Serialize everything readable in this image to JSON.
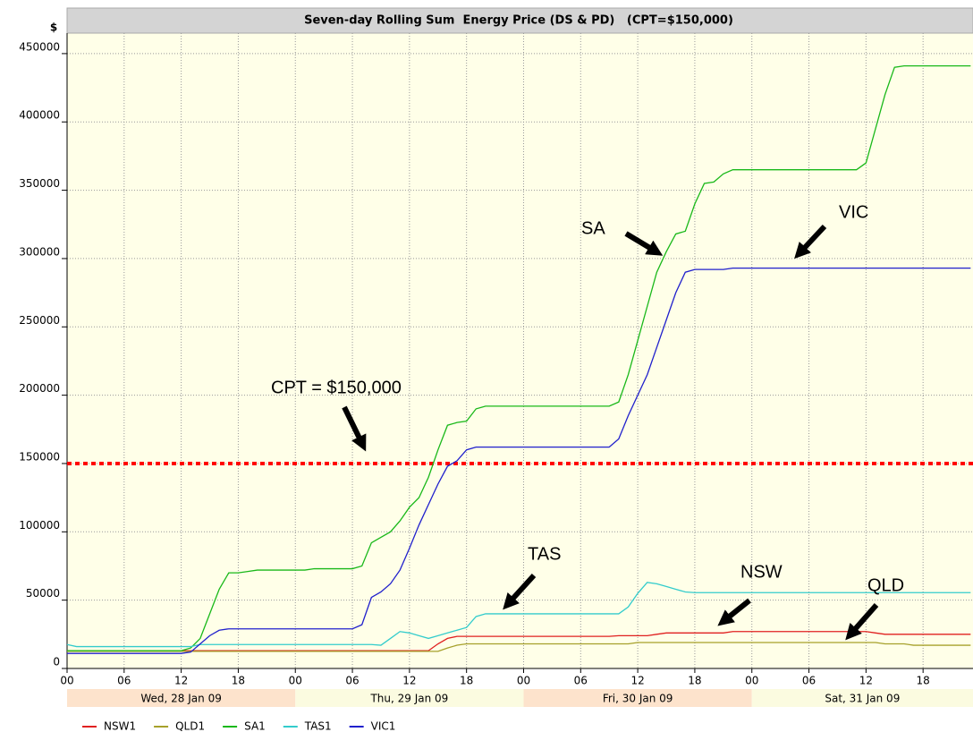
{
  "chart_data": {
    "type": "line",
    "title": "Seven-day Rolling Sum  Energy Price (DS & PD)   (CPT=$150,000)",
    "y_label": "$",
    "x": [
      0,
      1,
      2,
      3,
      4,
      5,
      6,
      7,
      8,
      9,
      10,
      11,
      12,
      13,
      14,
      15,
      16,
      17,
      18,
      19,
      20,
      21,
      22,
      23,
      24,
      25,
      26,
      27,
      28,
      29,
      30,
      31,
      32,
      33,
      34,
      35,
      36,
      37,
      38,
      39,
      40,
      41,
      42,
      43,
      44,
      45,
      46,
      47,
      48,
      49,
      50,
      51,
      52,
      53,
      54,
      55,
      56,
      57,
      58,
      59,
      60,
      61,
      62,
      63,
      64,
      65,
      66,
      67,
      68,
      69,
      70,
      71,
      72,
      73,
      74,
      75,
      76,
      77,
      78,
      79,
      80,
      81,
      82,
      83,
      84,
      85,
      86,
      87,
      88,
      89,
      90,
      91,
      92,
      93,
      94,
      95
    ],
    "xlim": [
      0,
      95.25
    ],
    "xticks": [
      {
        "value": 0,
        "label": "00"
      },
      {
        "value": 6,
        "label": "06"
      },
      {
        "value": 12,
        "label": "12"
      },
      {
        "value": 18,
        "label": "18"
      },
      {
        "value": 24,
        "label": "00"
      },
      {
        "value": 30,
        "label": "06"
      },
      {
        "value": 36,
        "label": "12"
      },
      {
        "value": 42,
        "label": "18"
      },
      {
        "value": 48,
        "label": "00"
      },
      {
        "value": 54,
        "label": "06"
      },
      {
        "value": 60,
        "label": "12"
      },
      {
        "value": 66,
        "label": "18"
      },
      {
        "value": 72,
        "label": "00"
      },
      {
        "value": 78,
        "label": "06"
      },
      {
        "value": 84,
        "label": "12"
      },
      {
        "value": 90,
        "label": "18"
      }
    ],
    "day_tick_color": "#ff0000",
    "days": [
      {
        "label": "Wed, 28 Jan 09",
        "start": 0,
        "color": "#fde3cc"
      },
      {
        "label": "Thu, 29 Jan 09",
        "start": 24,
        "color": "#fbfbe0"
      },
      {
        "label": "Fri, 30 Jan 09",
        "start": 48,
        "color": "#fde3cc"
      },
      {
        "label": "Sat, 31 Jan 09",
        "start": 72,
        "color": "#fbfbe0"
      }
    ],
    "ylim": [
      0,
      465000
    ],
    "yticks": [
      0,
      50000,
      100000,
      150000,
      200000,
      250000,
      300000,
      350000,
      400000,
      450000
    ],
    "grid": true,
    "reference_line": {
      "value": 150000,
      "color": "#ff0000"
    },
    "series": [
      {
        "name": "NSW1",
        "color": "#e02020",
        "values": [
          13000,
          13000,
          13000,
          13000,
          13000,
          13000,
          13000,
          13000,
          13000,
          13000,
          13000,
          13000,
          13000,
          13000,
          13000,
          13000,
          13000,
          13000,
          13000,
          13000,
          13000,
          13000,
          13000,
          13000,
          13000,
          13000,
          13000,
          13000,
          13000,
          13000,
          13000,
          13000,
          13000,
          13000,
          13000,
          13000,
          13000,
          13000,
          13000,
          18000,
          22000,
          23500,
          23500,
          23500,
          23500,
          23500,
          23500,
          23500,
          23500,
          23500,
          23500,
          23500,
          23500,
          23500,
          23500,
          23500,
          23500,
          23500,
          24000,
          24000,
          24000,
          24000,
          25000,
          26000,
          26000,
          26000,
          26000,
          26000,
          26000,
          26000,
          27000,
          27000,
          27000,
          27000,
          27000,
          27000,
          27000,
          27000,
          27000,
          27000,
          27000,
          27000,
          27000,
          27000,
          27000,
          26000,
          25000,
          25000,
          25000,
          25000,
          25000,
          25000,
          25000,
          25000,
          25000,
          25000
        ]
      },
      {
        "name": "QLD1",
        "color": "#a6a02a",
        "values": [
          12500,
          12500,
          12500,
          12500,
          12500,
          12500,
          12500,
          12500,
          12500,
          12500,
          12500,
          12500,
          12500,
          12500,
          12500,
          12500,
          12500,
          12500,
          12500,
          12500,
          12500,
          12500,
          12500,
          12500,
          12500,
          12500,
          12500,
          12500,
          12500,
          12500,
          12500,
          12500,
          12500,
          12500,
          12500,
          12500,
          12500,
          12500,
          12500,
          12500,
          15000,
          17000,
          18000,
          18000,
          18000,
          18000,
          18000,
          18000,
          18000,
          18000,
          18000,
          18000,
          18000,
          18000,
          18000,
          18000,
          18000,
          18000,
          18000,
          18000,
          19000,
          19000,
          19000,
          19000,
          19000,
          19000,
          19000,
          19000,
          19000,
          19000,
          19000,
          19000,
          19000,
          19000,
          19000,
          19000,
          19000,
          19000,
          19000,
          19000,
          19000,
          19000,
          19000,
          19000,
          19000,
          19000,
          18000,
          18000,
          18000,
          17000,
          17000,
          17000,
          17000,
          17000,
          17000,
          17000
        ]
      },
      {
        "name": "SA1",
        "color": "#19b819",
        "values": [
          13000,
          13000,
          13000,
          13000,
          13000,
          13000,
          13000,
          13000,
          13000,
          13000,
          13000,
          13000,
          13000,
          15000,
          22000,
          40000,
          58000,
          70000,
          70000,
          71000,
          72000,
          72000,
          72000,
          72000,
          72000,
          72000,
          73000,
          73000,
          73000,
          73000,
          73000,
          75000,
          92000,
          96000,
          100000,
          108000,
          118000,
          125000,
          140000,
          160000,
          178000,
          180000,
          181000,
          190000,
          192000,
          192000,
          192000,
          192000,
          192000,
          192000,
          192000,
          192000,
          192000,
          192000,
          192000,
          192000,
          192000,
          192000,
          195000,
          215000,
          240000,
          265000,
          290000,
          305000,
          318000,
          320000,
          340000,
          355000,
          356000,
          362000,
          365000,
          365000,
          365000,
          365000,
          365000,
          365000,
          365000,
          365000,
          365000,
          365000,
          365000,
          365000,
          365000,
          365000,
          370000,
          395000,
          420000,
          440000,
          441000,
          441000,
          441000,
          441000,
          441000,
          441000,
          441000,
          441000
        ]
      },
      {
        "name": "TAS1",
        "color": "#33cccc",
        "values": [
          17500,
          16000,
          16000,
          16000,
          16000,
          16000,
          16000,
          16000,
          16000,
          16000,
          16000,
          16000,
          16000,
          16000,
          17500,
          17500,
          17500,
          17500,
          17500,
          17500,
          17500,
          17500,
          17500,
          17500,
          17500,
          17500,
          17500,
          17500,
          17500,
          17500,
          17500,
          17500,
          17500,
          17000,
          22000,
          27000,
          26000,
          24000,
          22000,
          24000,
          26000,
          28000,
          30000,
          38000,
          40000,
          40000,
          40000,
          40000,
          40000,
          40000,
          40000,
          40000,
          40000,
          40000,
          40000,
          40000,
          40000,
          40000,
          40000,
          45000,
          55000,
          63000,
          62000,
          60000,
          58000,
          56000,
          55500,
          55500,
          55500,
          55500,
          55500,
          55500,
          55500,
          55500,
          55500,
          55500,
          55500,
          55500,
          55500,
          55500,
          55500,
          55500,
          55500,
          55500,
          55500,
          55500,
          55500,
          55500,
          55500,
          55500,
          55500,
          55500,
          55500,
          55500,
          55500,
          55500
        ]
      },
      {
        "name": "VIC1",
        "color": "#2020cc",
        "values": [
          11000,
          11000,
          11000,
          11000,
          11000,
          11000,
          11000,
          11000,
          11000,
          11000,
          11000,
          11000,
          11000,
          12000,
          18000,
          24000,
          28000,
          29000,
          29000,
          29000,
          29000,
          29000,
          29000,
          29000,
          29000,
          29000,
          29000,
          29000,
          29000,
          29000,
          29000,
          32000,
          52000,
          56000,
          62000,
          72000,
          88000,
          105000,
          120000,
          135000,
          148000,
          152000,
          160000,
          162000,
          162000,
          162000,
          162000,
          162000,
          162000,
          162000,
          162000,
          162000,
          162000,
          162000,
          162000,
          162000,
          162000,
          162000,
          168000,
          185000,
          200000,
          215000,
          235000,
          255000,
          275000,
          290000,
          292000,
          292000,
          292000,
          292000,
          293000,
          293000,
          293000,
          293000,
          293000,
          293000,
          293000,
          293000,
          293000,
          293000,
          293000,
          293000,
          293000,
          293000,
          293000,
          293000,
          293000,
          293000,
          293000,
          293000,
          293000,
          293000,
          293000,
          293000,
          293000,
          293000
        ]
      }
    ],
    "annotations": [
      "SA",
      "VIC",
      "CPT = $150,000",
      "TAS",
      "NSW",
      "QLD"
    ]
  }
}
